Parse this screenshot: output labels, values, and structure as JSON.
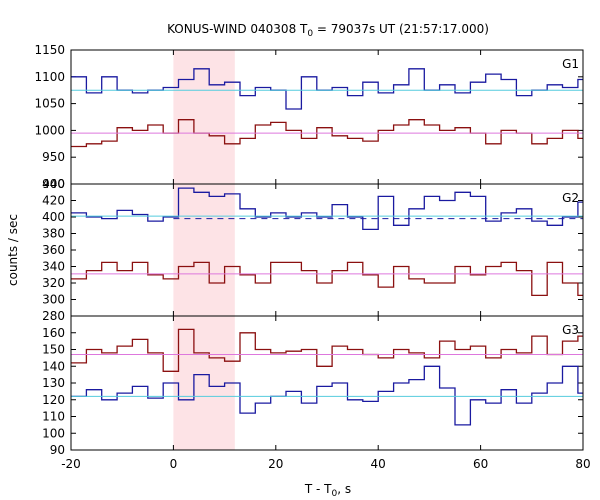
{
  "chart_data": {
    "type": "line",
    "title_prefix": "KONUS-WIND 040308 T",
    "title_sub": "0",
    "title_suffix": " = 79037s UT (21:57:17.000)",
    "xlabel_prefix": "T - T",
    "xlabel_sub": "0",
    "xlabel_suffix": ", s",
    "ylabel": "counts / sec",
    "xlim": [
      -20,
      80
    ],
    "xticks": [
      -20,
      0,
      20,
      40,
      60,
      80
    ],
    "shaded_interval": [
      0,
      12
    ],
    "bin_edges": [
      -20,
      -17,
      -14,
      -11,
      -8,
      -5,
      -2,
      1,
      4,
      7,
      10,
      13,
      16,
      19,
      22,
      25,
      28,
      31,
      34,
      37,
      40,
      43,
      46,
      49,
      52,
      55,
      58,
      61,
      64,
      67,
      70,
      73,
      76,
      79,
      80
    ],
    "panels": [
      {
        "label": "G1",
        "ylim": [
          900,
          1150
        ],
        "yticks": [
          900,
          950,
          1000,
          1050,
          1100,
          1150
        ],
        "series": [
          {
            "color": "#1a1aa0",
            "style": "step",
            "values": [
              1100,
              1070,
              1100,
              1075,
              1070,
              1075,
              1080,
              1095,
              1115,
              1085,
              1090,
              1065,
              1080,
              1075,
              1040,
              1100,
              1075,
              1080,
              1065,
              1090,
              1070,
              1085,
              1115,
              1075,
              1085,
              1070,
              1090,
              1105,
              1095,
              1065,
              1075,
              1085,
              1080,
              1095
            ]
          },
          {
            "color": "#8b1010",
            "style": "step",
            "values": [
              970,
              975,
              980,
              1005,
              1000,
              1010,
              995,
              1020,
              995,
              990,
              975,
              985,
              1010,
              1015,
              1000,
              985,
              1005,
              990,
              985,
              980,
              1000,
              1010,
              1020,
              1010,
              1000,
              1005,
              995,
              975,
              1000,
              995,
              975,
              985,
              1000,
              985
            ]
          },
          {
            "color": "#55ccdd",
            "style": "line",
            "level": 1075
          },
          {
            "color": "#dd77dd",
            "style": "line",
            "level": 995
          }
        ]
      },
      {
        "label": "G2",
        "ylim": [
          280,
          440
        ],
        "yticks": [
          280,
          300,
          320,
          340,
          360,
          380,
          400,
          420,
          440
        ],
        "series": [
          {
            "color": "#1a1aa0",
            "style": "step",
            "values": [
              405,
              400,
              398,
              408,
              403,
              395,
              400,
              435,
              430,
              425,
              428,
              410,
              400,
              405,
              400,
              405,
              400,
              415,
              400,
              385,
              425,
              390,
              410,
              425,
              420,
              430,
              425,
              395,
              405,
              410,
              395,
              390,
              400,
              418
            ]
          },
          {
            "color": "#8b1010",
            "style": "step",
            "values": [
              325,
              335,
              345,
              335,
              345,
              330,
              325,
              340,
              345,
              320,
              340,
              330,
              320,
              345,
              345,
              335,
              320,
              335,
              345,
              330,
              315,
              340,
              325,
              320,
              320,
              340,
              330,
              340,
              345,
              335,
              305,
              345,
              320,
              305
            ]
          },
          {
            "color": "#55ccdd",
            "style": "line",
            "level": 401
          },
          {
            "color": "#dd77dd",
            "style": "line",
            "level": 331
          },
          {
            "color": "#1a1aa0",
            "style": "dashed",
            "level": 398
          }
        ]
      },
      {
        "label": "G3",
        "ylim": [
          90,
          170
        ],
        "yticks": [
          90,
          100,
          110,
          120,
          130,
          140,
          150,
          160
        ],
        "series": [
          {
            "color": "#8b1010",
            "style": "step",
            "values": [
              142,
              150,
              148,
              152,
              156,
              148,
              137,
              162,
              148,
              145,
              143,
              160,
              150,
              148,
              149,
              150,
              140,
              152,
              150,
              147,
              145,
              150,
              148,
              145,
              155,
              150,
              152,
              145,
              150,
              148,
              158,
              147,
              155,
              158
            ]
          },
          {
            "color": "#1a1aa0",
            "style": "step",
            "values": [
              122,
              126,
              120,
              124,
              128,
              121,
              130,
              120,
              135,
              128,
              130,
              112,
              118,
              122,
              125,
              118,
              128,
              130,
              120,
              119,
              125,
              130,
              132,
              140,
              127,
              105,
              120,
              118,
              126,
              118,
              124,
              130,
              140,
              124
            ]
          },
          {
            "color": "#55ccdd",
            "style": "line",
            "level": 122
          },
          {
            "color": "#dd77dd",
            "style": "line",
            "level": 147
          }
        ]
      }
    ]
  }
}
